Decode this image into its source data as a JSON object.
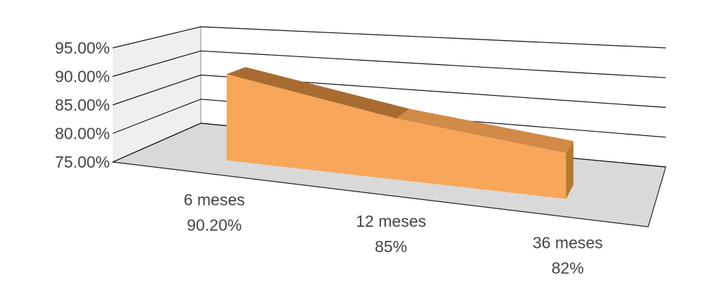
{
  "chart_data": {
    "type": "area3d",
    "categories": [
      "6 meses",
      "12 meses",
      "36 meses"
    ],
    "values": [
      90.2,
      85,
      82
    ],
    "value_labels": [
      "90.20%",
      "85%",
      "82%"
    ],
    "color": "#f7a65a",
    "ylim": [
      75,
      95
    ],
    "yticks": [
      {
        "value": 75,
        "label": "75.00%"
      },
      {
        "value": 80,
        "label": "80.00%"
      },
      {
        "value": 85,
        "label": "85.00%"
      },
      {
        "value": 90,
        "label": "90.00%"
      },
      {
        "value": 95,
        "label": "95.00%"
      }
    ],
    "grid": true
  }
}
